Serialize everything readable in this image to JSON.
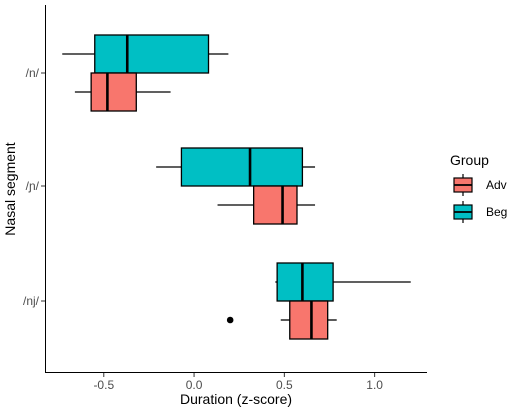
{
  "chart_data": {
    "type": "boxplot",
    "orientation": "horizontal",
    "xlabel": "Duration (z-score)",
    "ylabel": "Nasal segment",
    "xlim": [
      -0.82,
      1.29
    ],
    "xticks": [
      -0.5,
      0.0,
      0.5,
      1.0
    ],
    "xtick_labels": [
      "-0.5",
      "0.0",
      "0.5",
      "1.0"
    ],
    "categories": [
      "/n/",
      "/ɲ/",
      "/nj/"
    ],
    "grid": false,
    "legend": {
      "title": "Group",
      "position": "right",
      "entries": [
        {
          "name": "Adv",
          "color": "#F8766D"
        },
        {
          "name": "Beg",
          "color": "#00BFC4"
        }
      ]
    },
    "series": [
      {
        "name": "Beg",
        "color": "#00BFC4",
        "boxes": [
          {
            "category": "/n/",
            "whisker_low": -0.73,
            "q1": -0.55,
            "median": -0.37,
            "q3": 0.08,
            "whisker_high": 0.19,
            "outliers": []
          },
          {
            "category": "/ɲ/",
            "whisker_low": -0.21,
            "q1": -0.07,
            "median": 0.31,
            "q3": 0.6,
            "whisker_high": 0.67,
            "outliers": []
          },
          {
            "category": "/nj/",
            "whisker_low": 0.45,
            "q1": 0.46,
            "median": 0.6,
            "q3": 0.77,
            "whisker_high": 1.2,
            "outliers": []
          }
        ]
      },
      {
        "name": "Adv",
        "color": "#F8766D",
        "boxes": [
          {
            "category": "/n/",
            "whisker_low": -0.66,
            "q1": -0.57,
            "median": -0.48,
            "q3": -0.32,
            "whisker_high": -0.13,
            "outliers": []
          },
          {
            "category": "/ɲ/",
            "whisker_low": 0.13,
            "q1": 0.33,
            "median": 0.49,
            "q3": 0.57,
            "whisker_high": 0.67,
            "outliers": []
          },
          {
            "category": "/nj/",
            "whisker_low": 0.48,
            "q1": 0.53,
            "median": 0.65,
            "q3": 0.74,
            "whisker_high": 0.79,
            "outliers": [
              0.2
            ]
          }
        ]
      }
    ]
  }
}
